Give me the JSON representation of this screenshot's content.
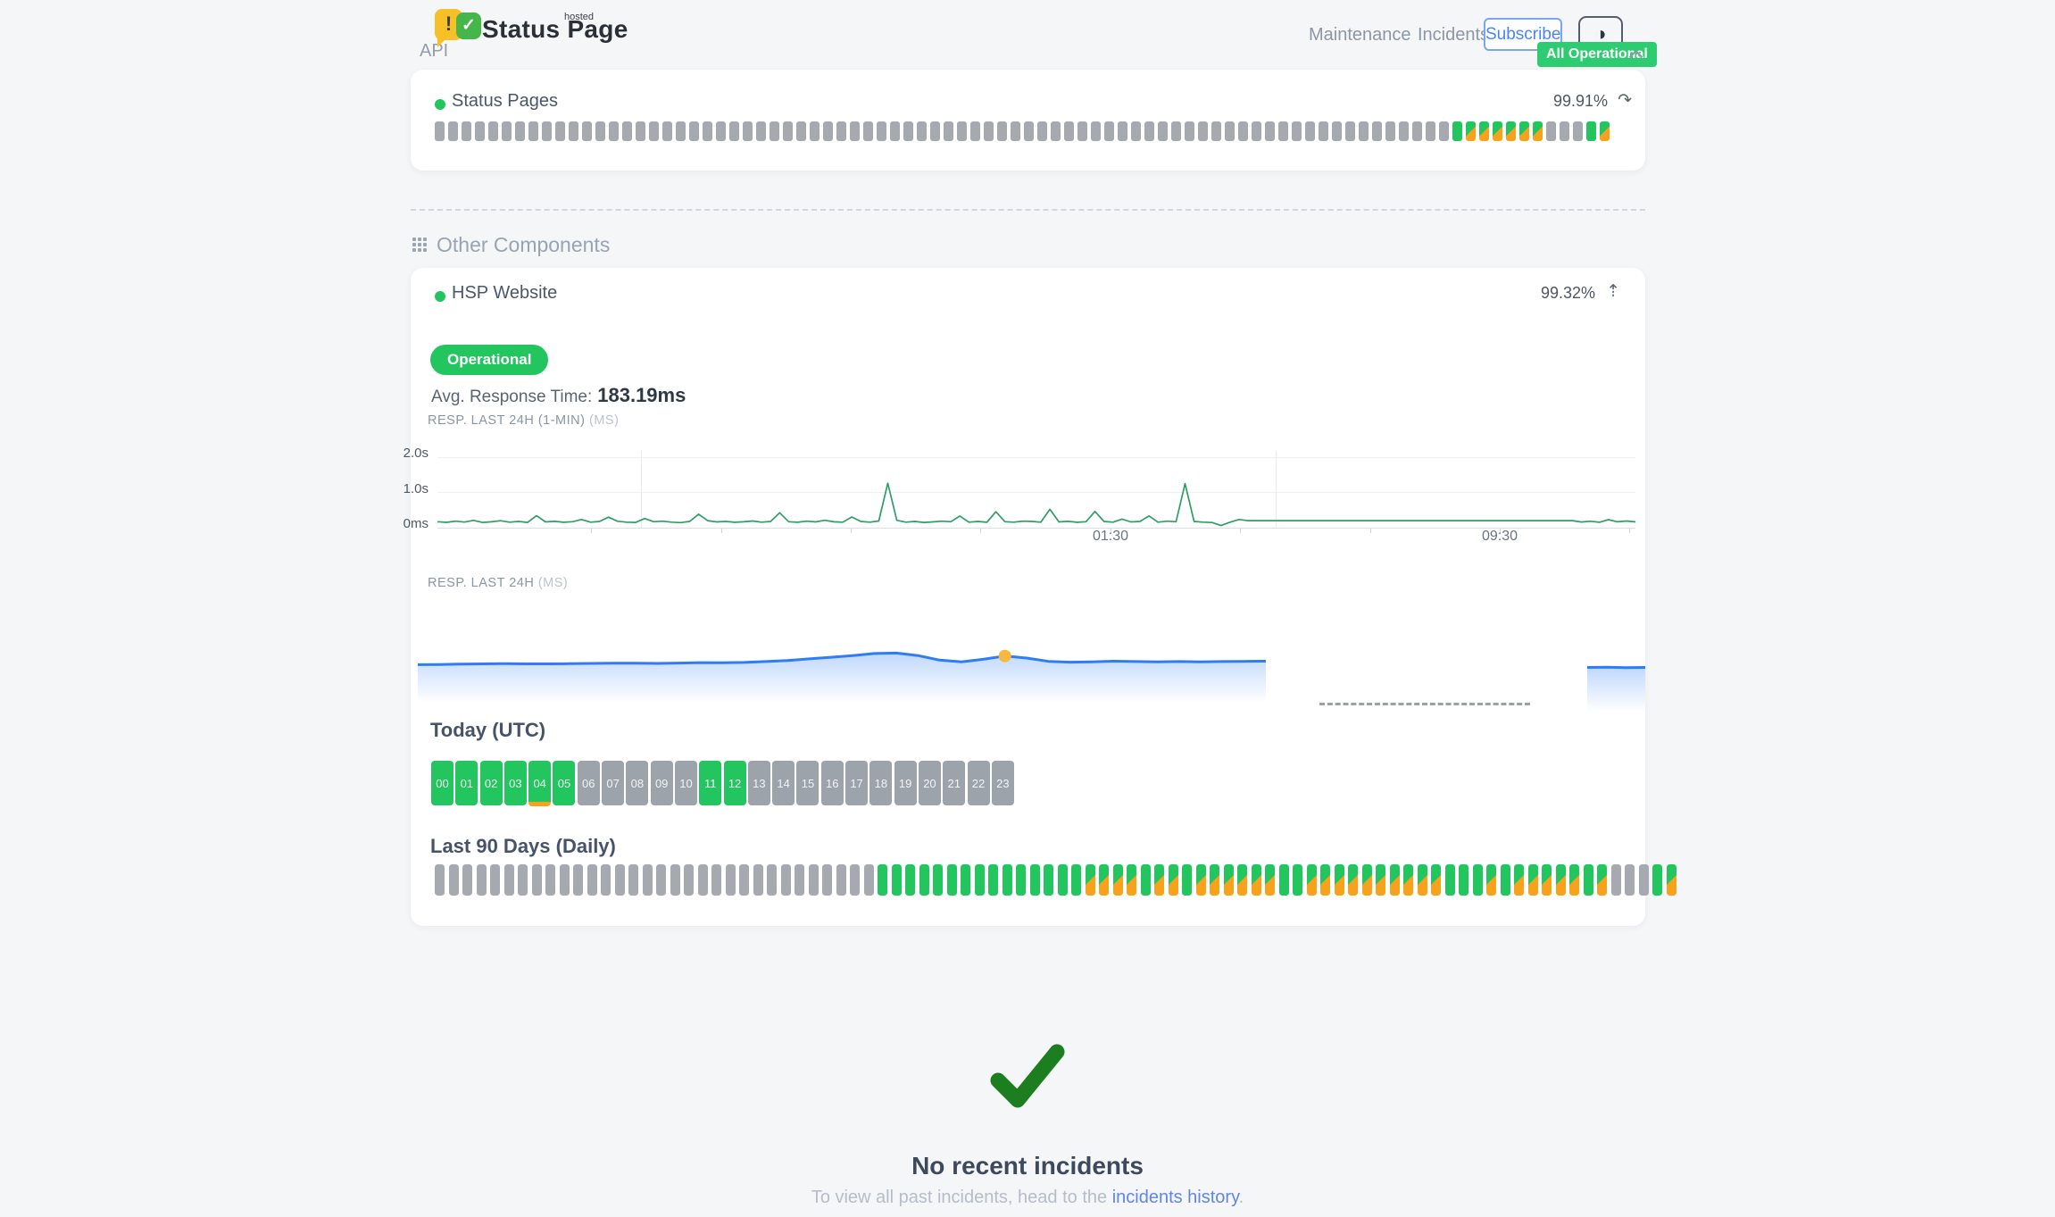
{
  "theme": {
    "green": "#22c55e",
    "badge_green": "#2ecc71",
    "orange": "#f6a21d",
    "gray_bar": "#a6aab0",
    "hour_gray": "#9da3ab",
    "line_green": "#2f9e66",
    "blue": "#2e7df6",
    "link_blue": "#6385e4",
    "text_dark": "#3f4a5b",
    "muted": "#98a1ae",
    "check_green": "#1d7e20"
  },
  "header": {
    "logo": {
      "title": "Status Page",
      "superscript": "hosted",
      "exclamation": "!",
      "check": "✓"
    },
    "nav": [
      {
        "label": "Maintenance"
      },
      {
        "label": "Incidents"
      }
    ],
    "subscribe_label": "Subscribe",
    "theme_toggle_glyph": "◑",
    "status_badge": {
      "label": "All Operational"
    }
  },
  "api_section": {
    "title": "API",
    "component": {
      "name": "Status Pages",
      "uptime_percent": "99.91%",
      "trend_glyph": "↷"
    }
  },
  "other_components": {
    "title": "Other Components",
    "component": {
      "name": "HSP Website",
      "uptime_percent": "99.32%",
      "trend_glyph": "⇡",
      "status_label": "Operational",
      "avg_response_label": "Avg. Response Time:",
      "avg_response_value": "183.19ms"
    }
  },
  "chart_data": [
    {
      "type": "line",
      "name": "resp_last_24h_1min",
      "title": "RESP. LAST 24H (1-MIN)",
      "unit": "(MS)",
      "ylim": [
        0,
        2000
      ],
      "ytick_labels": [
        "2.0s",
        "1.0s",
        "0ms"
      ],
      "xticks": [
        "01:30",
        "09:30"
      ],
      "xtick_positions_pct": [
        56.2,
        88.7
      ],
      "grid": "horizontal, sparse vertical",
      "line_color": "#2f9e66",
      "values_ms": [
        170,
        152,
        186,
        160,
        208,
        150,
        166,
        198,
        158,
        176,
        150,
        338,
        164,
        180,
        154,
        170,
        232,
        158,
        176,
        300,
        182,
        158,
        150,
        262,
        170,
        186,
        158,
        145,
        176,
        382,
        200,
        164,
        176,
        154,
        166,
        190,
        158,
        176,
        424,
        170,
        154,
        186,
        164,
        210,
        168,
        158,
        304,
        176,
        158,
        190,
        1262,
        210,
        158,
        176,
        150,
        164,
        186,
        170,
        332,
        158,
        176,
        154,
        452,
        170,
        158,
        186,
        176,
        158,
        522,
        164,
        180,
        155,
        170,
        462,
        176,
        158,
        242,
        164,
        176,
        334,
        158,
        186,
        170,
        1248,
        176,
        158,
        146,
        60,
        158,
        232,
        200,
        200,
        200,
        200,
        200,
        200,
        200,
        200,
        200,
        200,
        200,
        200,
        200,
        200,
        200,
        200,
        200,
        200,
        200,
        200,
        200,
        200,
        200,
        200,
        200,
        200,
        200,
        200,
        200,
        200,
        200,
        200,
        200,
        200,
        200,
        200,
        200,
        162,
        182,
        154,
        228,
        168,
        190,
        165
      ]
    },
    {
      "type": "area",
      "name": "resp_last_24h",
      "title": "RESP. LAST 24H",
      "unit": "(MS)",
      "line_color": "#2e7df6",
      "ylim": [
        0,
        430
      ],
      "values_ms": [
        196,
        197,
        199,
        200,
        201,
        200,
        200,
        201,
        202,
        203,
        203,
        202,
        204,
        206,
        205,
        207,
        211,
        216,
        224,
        232,
        240,
        250,
        252,
        240,
        218,
        210,
        222,
        238,
        228,
        212,
        208,
        210,
        213,
        211,
        210,
        211,
        210,
        211,
        212,
        213
      ],
      "highlight_dot": {
        "index": 27,
        "value_ms": 238,
        "color": "#f6b93c"
      },
      "gap_dashed_line": true,
      "tail_values_ms": [
        210,
        211,
        209,
        210
      ],
      "tail_ylim": [
        0,
        240
      ]
    },
    {
      "type": "status-bars",
      "name": "status_pages_uptime",
      "legend": {
        "u": "operational",
        "d": "degraded",
        "e": "no-data"
      },
      "bars": "eeeeeeeeeeeeeeeeeeeeeeeeeeeeeeeeeeeeeeeeeeeeeeeeeeeeeeeeeeeeeeeeeeeeeeeeeeeeuddddddeeeud"
    },
    {
      "type": "status-hours",
      "name": "today_utc",
      "title": "Today (UTC)",
      "labels": [
        "00",
        "01",
        "02",
        "03",
        "04",
        "05",
        "06",
        "07",
        "08",
        "09",
        "10",
        "11",
        "12",
        "13",
        "14",
        "15",
        "16",
        "17",
        "18",
        "19",
        "20",
        "21",
        "22",
        "23"
      ],
      "states": "uuuuuueeeeeuueeeeeeeeeee",
      "marker_index": 4,
      "legend": {
        "u": "operational",
        "e": "no-data",
        "marker": "degraded-minutes"
      }
    },
    {
      "type": "status-bars",
      "name": "last_90_days",
      "title": "Last 90 Days (Daily)",
      "legend": {
        "u": "operational",
        "d": "degraded",
        "e": "no-data"
      },
      "bars": "eeeeeeeeeeeeeeeeeeeeeeeeeeeeeeeeuuuuuuuuuuuuuuudddduddudddddduudddddddddduuududddddudeeeud"
    }
  ],
  "footer": {
    "title": "No recent incidents",
    "subtitle_prefix": "To view all past incidents, head to the ",
    "link_label": "incidents history",
    "subtitle_suffix": "."
  }
}
